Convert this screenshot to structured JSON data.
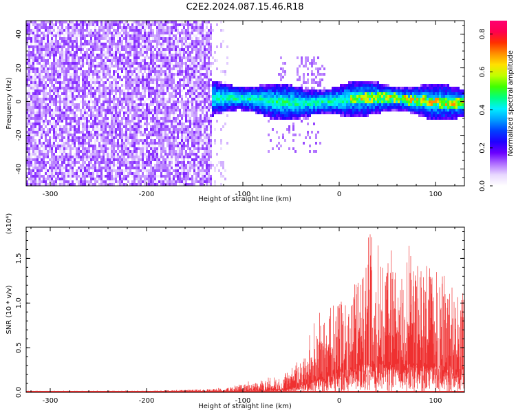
{
  "title": "C2E2.2024.087.15.46.R18",
  "colors": {
    "snr_line": "#ef3030",
    "noise_fill": "#7b22ee",
    "colormap": [
      "#ffffff",
      "#e8d8ff",
      "#b070ff",
      "#6a00ff",
      "#2000ff",
      "#0040ff",
      "#00a0ff",
      "#00f0ff",
      "#00ff80",
      "#40ff00",
      "#c0ff00",
      "#ffe000",
      "#ff9000",
      "#ff3000",
      "#ff0050",
      "#ff0070"
    ]
  },
  "chart_data": [
    {
      "type": "heatmap",
      "title": "C2E2.2024.087.15.46.R18",
      "xlabel": "Height of straight line (km)",
      "ylabel": "Frequency (Hz)",
      "xlim": [
        -325,
        130
      ],
      "ylim": [
        -50,
        48
      ],
      "x_ticks": [
        -300,
        -200,
        -100,
        0,
        100
      ],
      "x_tick_labels": [
        "-300",
        "-200",
        "-100",
        "0",
        "100"
      ],
      "y_ticks": [
        -40,
        -20,
        0,
        20,
        40
      ],
      "y_tick_labels": [
        "-40",
        "-20",
        "0",
        "20",
        "40"
      ],
      "description_regions": [
        {
          "x": [
            -325,
            -130
          ],
          "y": [
            -50,
            48
          ],
          "level": 0.15
        },
        {
          "x": [
            -130,
            130
          ],
          "y": [
            -8,
            8
          ],
          "level": 0.3
        },
        {
          "x": [
            -130,
            130
          ],
          "y": [
            -2,
            3
          ],
          "level": 0.5
        }
      ],
      "colorbar": {
        "label": "Normalized spectral amplitude",
        "range": [
          0.0,
          0.87
        ],
        "ticks": [
          0.0,
          0.2,
          0.4,
          0.6,
          0.8
        ],
        "tick_labels": [
          "0.0",
          "0.2",
          "0.4",
          "0.6",
          "0.8"
        ]
      }
    },
    {
      "type": "area",
      "xlabel": "Height of straight line (km)",
      "ylabel": "SNR (10 * v/v)",
      "ylabel_multiplier": "(x10⁴)",
      "xlim": [
        -325,
        130
      ],
      "ylim": [
        0,
        1.85
      ],
      "x_ticks": [
        -300,
        -200,
        -100,
        0,
        100
      ],
      "x_tick_labels": [
        "-300",
        "-200",
        "-100",
        "0",
        "100"
      ],
      "y_ticks": [
        0.0,
        0.5,
        1.0,
        1.5
      ],
      "y_tick_labels": [
        "0.0",
        "0.5",
        "1.0",
        "1.5"
      ],
      "series": [
        {
          "x": [
            -325,
            -250,
            -200,
            -150,
            -130,
            -110,
            -100,
            -80,
            -60,
            -50,
            -40,
            -30,
            -20,
            -10,
            0,
            10,
            20,
            30,
            40,
            50,
            60,
            70,
            80,
            90,
            100,
            110,
            120,
            130
          ],
          "upper": [
            0.02,
            0.02,
            0.02,
            0.03,
            0.04,
            0.08,
            0.12,
            0.15,
            0.2,
            0.28,
            0.4,
            0.7,
            0.9,
            0.95,
            1.1,
            1.2,
            1.3,
            1.86,
            1.7,
            1.72,
            1.6,
            1.74,
            1.5,
            1.55,
            1.55,
            1.62,
            1.35,
            1.1
          ],
          "mean": [
            0.01,
            0.01,
            0.01,
            0.02,
            0.02,
            0.04,
            0.05,
            0.07,
            0.09,
            0.12,
            0.2,
            0.3,
            0.45,
            0.5,
            0.6,
            0.65,
            0.75,
            0.85,
            0.8,
            0.85,
            0.8,
            0.82,
            0.78,
            0.8,
            0.75,
            0.78,
            0.7,
            0.65
          ]
        }
      ]
    }
  ]
}
